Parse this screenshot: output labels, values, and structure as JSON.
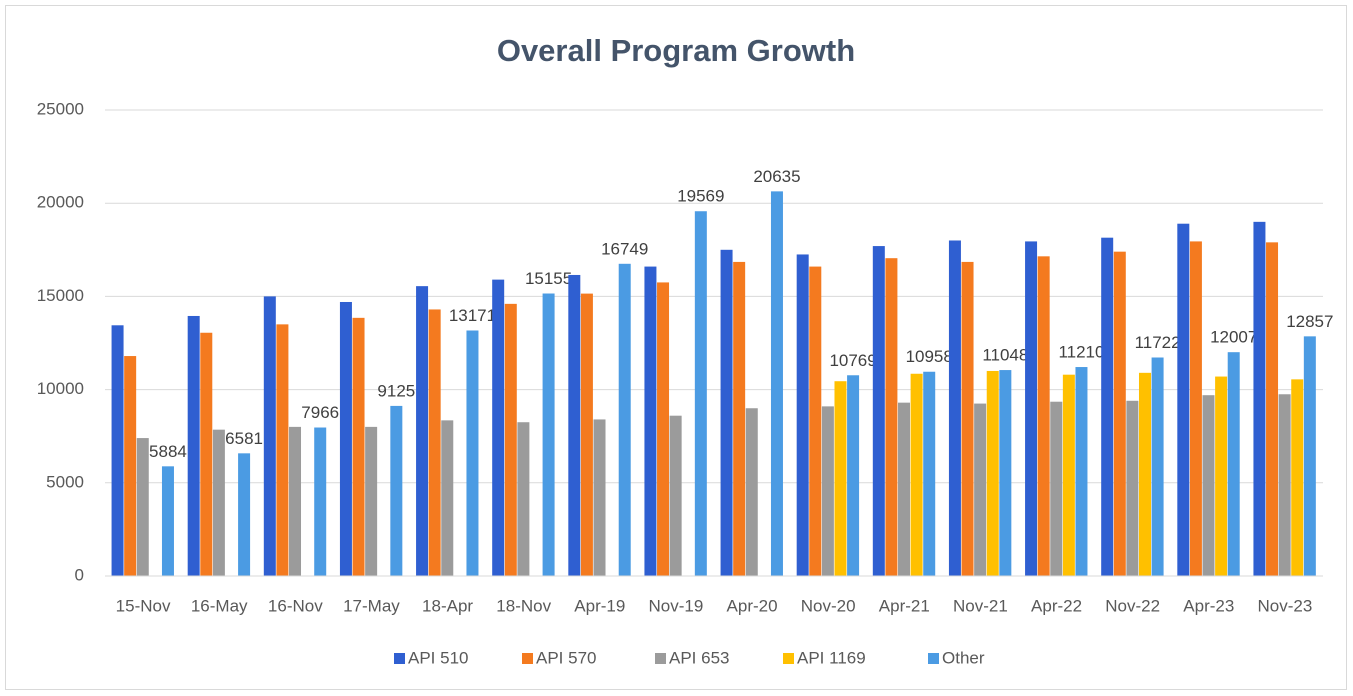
{
  "chart_data": {
    "type": "bar",
    "title": "Overall Program Growth",
    "categories": [
      "15-Nov",
      "16-May",
      "16-Nov",
      "17-May",
      "18-Apr",
      "18-Nov",
      "Apr-19",
      "Nov-19",
      "Apr-20",
      "Nov-20",
      "Apr-21",
      "Nov-21",
      "Apr-22",
      "Nov-22",
      "Apr-23",
      "Nov-23"
    ],
    "series": [
      {
        "name": "API 510",
        "color": "#2f5fd1",
        "values": [
          13450,
          13950,
          15000,
          14700,
          15550,
          15900,
          16150,
          16600,
          17500,
          17250,
          17700,
          18000,
          17950,
          18150,
          18900,
          19000
        ]
      },
      {
        "name": "API 570",
        "color": "#f47a1f",
        "values": [
          11800,
          13050,
          13500,
          13850,
          14300,
          14600,
          15150,
          15750,
          16850,
          16600,
          17050,
          16850,
          17150,
          17400,
          17950,
          17900
        ]
      },
      {
        "name": "API 653",
        "color": "#9b9b9b",
        "values": [
          7400,
          7850,
          8000,
          8000,
          8350,
          8250,
          8400,
          8600,
          9000,
          9100,
          9300,
          9250,
          9350,
          9400,
          9700,
          9750
        ]
      },
      {
        "name": "API 1169",
        "color": "#ffc000",
        "values": [
          null,
          null,
          null,
          null,
          null,
          null,
          null,
          null,
          null,
          10450,
          10850,
          11000,
          10800,
          10900,
          10700,
          10550
        ]
      },
      {
        "name": "Other",
        "color": "#4b9be3",
        "values": [
          5884,
          6581,
          7966,
          9125,
          13171,
          15155,
          16749,
          19569,
          20635,
          10769,
          10958,
          11048,
          11210,
          11722,
          12007,
          12857
        ],
        "labeled": true
      }
    ],
    "ylim": [
      0,
      25000
    ],
    "yticks": [
      0,
      5000,
      10000,
      15000,
      20000,
      25000
    ],
    "grid": true,
    "legend": "bottom"
  }
}
